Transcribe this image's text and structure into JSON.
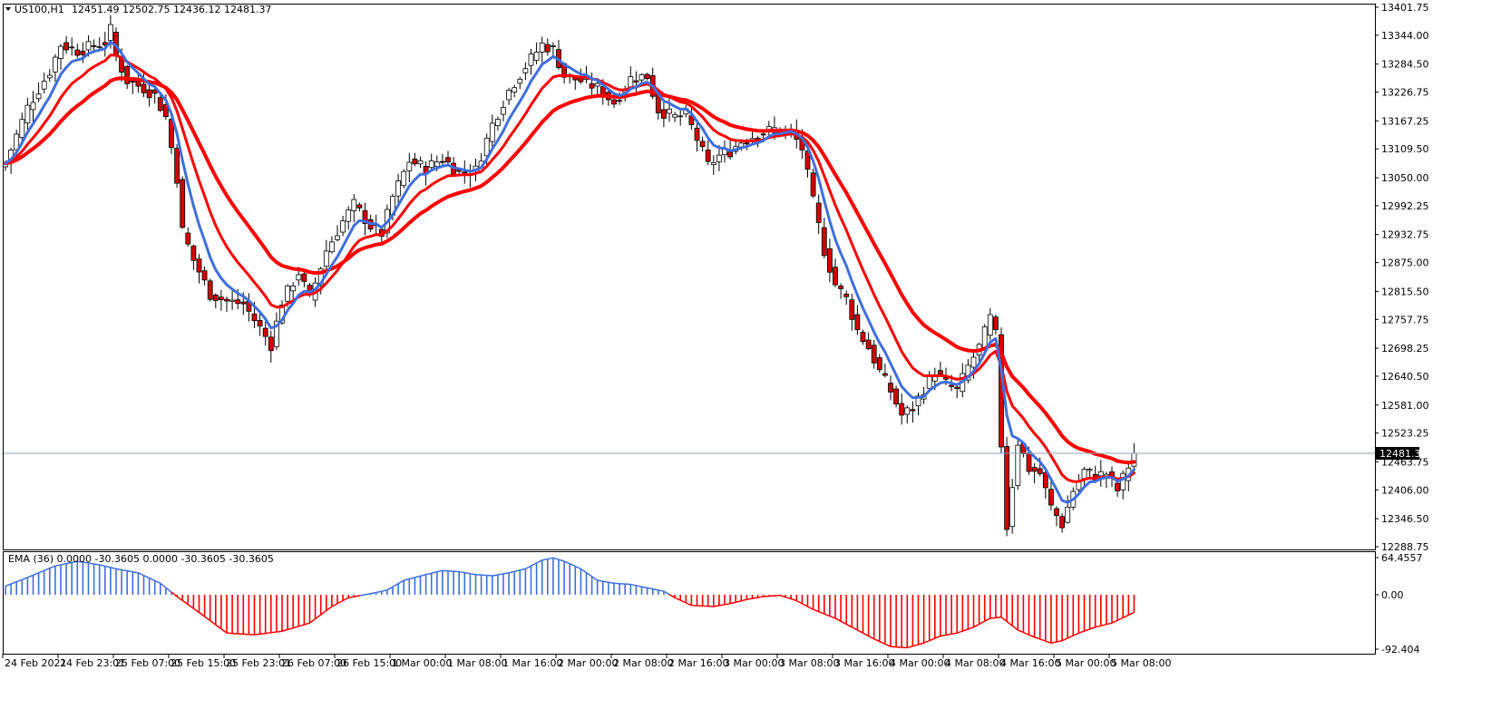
{
  "header": {
    "symbol": "US100,H1",
    "ohlc": "12451.49 12502.75 12436.12 12481.37",
    "indicator": "EMA (36) 0.0000 -30.3605 0.0000 -30.3605 -30.3605"
  },
  "colors": {
    "bull": "#ffffff",
    "bear": "#d40000",
    "candle_outline": "#000000",
    "wick": "#000000",
    "ema_fast": "#3f6fdc",
    "ema_slow": "#ff0000",
    "osc_positive": "#3f6fdc",
    "osc_negative": "#ff0000",
    "bid_line": "#8ea6b4",
    "price_tag_bg": "#000000"
  },
  "icons": {
    "menu": "triangle-down-icon"
  },
  "chart_data": [
    {
      "type": "candlestick",
      "series_name": "US100,H1",
      "ylim": [
        12288.75,
        13401.75
      ],
      "y_ticks": [
        "13401.75",
        "13344.00",
        "13284.50",
        "13226.75",
        "13167.25",
        "13109.50",
        "13050.00",
        "12992.25",
        "12932.75",
        "12875.00",
        "12815.50",
        "12757.75",
        "12698.25",
        "12640.50",
        "12581.00",
        "12523.25",
        "12463.75",
        "12406.00",
        "12346.50",
        "12288.75"
      ],
      "x_ticks": [
        "24 Feb 2021",
        "24 Feb 23:01",
        "25 Feb 07:00",
        "25 Feb 15:00",
        "25 Feb 23:01",
        "26 Feb 07:00",
        "26 Feb 15:00",
        "1 Mar 00:00",
        "1 Mar 08:00",
        "1 Mar 16:00",
        "2 Mar 00:00",
        "2 Mar 08:00",
        "2 Mar 16:00",
        "3 Mar 00:00",
        "3 Mar 08:00",
        "3 Mar 16:00",
        "4 Mar 00:00",
        "4 Mar 08:00",
        "4 Mar 16:00",
        "5 Mar 00:00",
        "5 Mar 08:00"
      ],
      "x_tick_index": [
        0,
        10,
        20,
        30,
        40,
        50,
        60,
        70,
        80,
        90,
        100,
        110,
        120,
        130,
        140,
        150,
        160,
        170,
        180,
        190,
        200
      ],
      "current_price": 12481.37,
      "current_price_label": "12481.37",
      "anchors": [
        [
          0,
          13080
        ],
        [
          4,
          13195
        ],
        [
          8,
          13270
        ],
        [
          10,
          13325
        ],
        [
          13,
          13312
        ],
        [
          18,
          13330
        ],
        [
          19,
          13355
        ],
        [
          20,
          13300
        ],
        [
          22,
          13250
        ],
        [
          25,
          13235
        ],
        [
          27,
          13220
        ],
        [
          29,
          13175
        ],
        [
          31,
          13050
        ],
        [
          32,
          12940
        ],
        [
          34,
          12880
        ],
        [
          37,
          12810
        ],
        [
          40,
          12795
        ],
        [
          43,
          12790
        ],
        [
          46,
          12740
        ],
        [
          48,
          12705
        ],
        [
          50,
          12795
        ],
        [
          53,
          12855
        ],
        [
          55,
          12800
        ],
        [
          58,
          12900
        ],
        [
          61,
          12960
        ],
        [
          63,
          12995
        ],
        [
          66,
          12950
        ],
        [
          68,
          12935
        ],
        [
          70,
          13010
        ],
        [
          73,
          13085
        ],
        [
          76,
          13070
        ],
        [
          79,
          13090
        ],
        [
          82,
          13060
        ],
        [
          85,
          13065
        ],
        [
          88,
          13160
        ],
        [
          91,
          13230
        ],
        [
          94,
          13280
        ],
        [
          97,
          13325
        ],
        [
          99,
          13315
        ],
        [
          101,
          13260
        ],
        [
          104,
          13250
        ],
        [
          107,
          13235
        ],
        [
          110,
          13205
        ],
        [
          113,
          13255
        ],
        [
          116,
          13260
        ],
        [
          118,
          13190
        ],
        [
          121,
          13175
        ],
        [
          123,
          13180
        ],
        [
          125,
          13130
        ],
        [
          127,
          13075
        ],
        [
          129,
          13095
        ],
        [
          131,
          13105
        ],
        [
          133,
          13125
        ],
        [
          136,
          13140
        ],
        [
          139,
          13150
        ],
        [
          142,
          13145
        ],
        [
          144,
          13110
        ],
        [
          146,
          13000
        ],
        [
          148,
          12900
        ],
        [
          150,
          12830
        ],
        [
          152,
          12800
        ],
        [
          154,
          12735
        ],
        [
          156,
          12700
        ],
        [
          158,
          12650
        ],
        [
          160,
          12610
        ],
        [
          162,
          12560
        ],
        [
          164,
          12575
        ],
        [
          166,
          12615
        ],
        [
          168,
          12650
        ],
        [
          170,
          12625
        ],
        [
          172,
          12610
        ],
        [
          174,
          12660
        ],
        [
          176,
          12700
        ],
        [
          178,
          12760
        ],
        [
          179,
          12725
        ],
        [
          180,
          12500
        ],
        [
          181,
          12330
        ],
        [
          183,
          12505
        ],
        [
          185,
          12450
        ],
        [
          187,
          12440
        ],
        [
          189,
          12370
        ],
        [
          191,
          12335
        ],
        [
          193,
          12405
        ],
        [
          195,
          12445
        ],
        [
          197,
          12435
        ],
        [
          199,
          12440
        ],
        [
          201,
          12405
        ],
        [
          203,
          12455
        ],
        [
          204,
          12481.37
        ]
      ],
      "series": [
        {
          "name": "",
          "role": "ema_fast"
        },
        {
          "name": "",
          "role": "ema_slow"
        }
      ]
    },
    {
      "type": "bar",
      "series_name": "EMA (36)",
      "ylim": [
        -92.404,
        64.4557
      ],
      "y_ticks": [
        "64.4557",
        "0.00",
        "-92.404"
      ],
      "anchors": [
        [
          0,
          15
        ],
        [
          4,
          30
        ],
        [
          9,
          50
        ],
        [
          13,
          58
        ],
        [
          17,
          52
        ],
        [
          20,
          45
        ],
        [
          24,
          38
        ],
        [
          28,
          20
        ],
        [
          31,
          -3
        ],
        [
          35,
          -30
        ],
        [
          40,
          -65
        ],
        [
          45,
          -68
        ],
        [
          50,
          -62
        ],
        [
          55,
          -48
        ],
        [
          59,
          -20
        ],
        [
          62,
          -5
        ],
        [
          66,
          2
        ],
        [
          69,
          8
        ],
        [
          72,
          25
        ],
        [
          76,
          35
        ],
        [
          79,
          42
        ],
        [
          82,
          40
        ],
        [
          85,
          35
        ],
        [
          88,
          33
        ],
        [
          91,
          38
        ],
        [
          94,
          45
        ],
        [
          97,
          60
        ],
        [
          99,
          64
        ],
        [
          101,
          58
        ],
        [
          104,
          45
        ],
        [
          107,
          25
        ],
        [
          110,
          20
        ],
        [
          113,
          18
        ],
        [
          116,
          12
        ],
        [
          119,
          6
        ],
        [
          121,
          -5
        ],
        [
          124,
          -18
        ],
        [
          128,
          -20
        ],
        [
          131,
          -15
        ],
        [
          134,
          -8
        ],
        [
          137,
          -3
        ],
        [
          140,
          -1
        ],
        [
          143,
          -10
        ],
        [
          146,
          -25
        ],
        [
          150,
          -40
        ],
        [
          153,
          -55
        ],
        [
          157,
          -75
        ],
        [
          160,
          -88
        ],
        [
          163,
          -90
        ],
        [
          166,
          -82
        ],
        [
          169,
          -70
        ],
        [
          172,
          -65
        ],
        [
          175,
          -55
        ],
        [
          178,
          -40
        ],
        [
          180,
          -38
        ],
        [
          183,
          -60
        ],
        [
          186,
          -72
        ],
        [
          189,
          -82
        ],
        [
          191,
          -78
        ],
        [
          194,
          -65
        ],
        [
          197,
          -55
        ],
        [
          200,
          -48
        ],
        [
          204,
          -30
        ]
      ]
    }
  ]
}
